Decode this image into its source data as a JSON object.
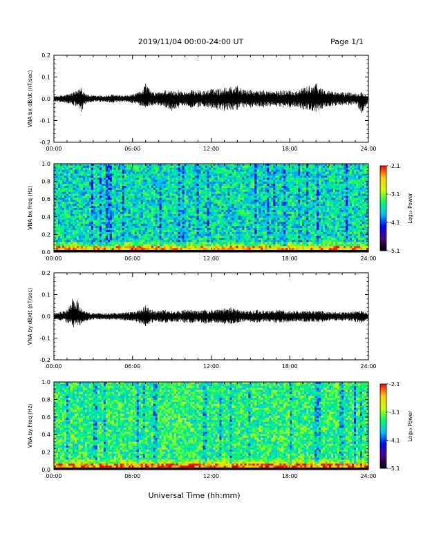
{
  "header": {
    "title": "2019/11/04  00:00-24:00 UT",
    "page_label": "Page 1/1"
  },
  "x_axis": {
    "label": "Universal Time (hh:mm)",
    "ticks": [
      "00:00",
      "06:00",
      "12:00",
      "18:00",
      "24:00"
    ]
  },
  "colorbar": {
    "label": "Log₁₀ Power",
    "tick_labels": [
      "-2.1",
      "-3.1",
      "-4.1",
      "-5.1"
    ],
    "range": [
      -5.1,
      -2.1
    ],
    "colormap": [
      "#000000",
      "#4b0082",
      "#0000ff",
      "#00bfff",
      "#00ff66",
      "#ccff00",
      "#ffcc00",
      "#ff0000"
    ]
  },
  "chart_data": [
    {
      "type": "line",
      "id": "bx",
      "ylabel": "VNA bx dB/dt (nT/sec)",
      "ylim": [
        -0.2,
        0.2
      ],
      "yticks": [
        -0.2,
        -0.1,
        0.0,
        0.1,
        0.2
      ],
      "ytick_labels": [
        "-0.2",
        "-0.1",
        "0.0",
        "0.1",
        "0.2"
      ],
      "xlim_hours": [
        0,
        24
      ],
      "series": [
        {
          "x_hours": [
            0,
            0.5,
            1,
            1.5,
            2,
            2.1,
            2.5,
            3,
            3.5,
            4,
            4.5,
            5,
            5.5,
            6,
            6.5,
            7,
            7.5,
            8,
            8.5,
            9,
            9.5,
            10,
            10.5,
            11,
            11.5,
            12,
            12.5,
            13,
            13.5,
            14,
            14.5,
            15,
            15.5,
            16,
            16.5,
            17,
            17.5,
            18,
            18.5,
            19,
            19.5,
            20,
            20.5,
            21,
            21.5,
            22,
            22.5,
            23,
            23.5,
            24
          ],
          "envelope_max": [
            0.012,
            0.015,
            0.02,
            0.03,
            0.045,
            0.05,
            0.02,
            0.015,
            0.015,
            0.015,
            0.02,
            0.015,
            0.015,
            0.02,
            0.03,
            0.07,
            0.03,
            0.03,
            0.04,
            0.035,
            0.04,
            0.03,
            0.04,
            0.04,
            0.035,
            0.045,
            0.045,
            0.05,
            0.055,
            0.06,
            0.04,
            0.04,
            0.035,
            0.04,
            0.035,
            0.035,
            0.04,
            0.04,
            0.035,
            0.05,
            0.06,
            0.07,
            0.045,
            0.035,
            0.03,
            0.03,
            0.03,
            0.025,
            0.03,
            0.02
          ],
          "envelope_min": [
            -0.012,
            -0.015,
            -0.02,
            -0.03,
            -0.045,
            -0.06,
            -0.02,
            -0.015,
            -0.015,
            -0.015,
            -0.02,
            -0.015,
            -0.015,
            -0.02,
            -0.03,
            -0.04,
            -0.03,
            -0.03,
            -0.04,
            -0.055,
            -0.04,
            -0.03,
            -0.04,
            -0.04,
            -0.035,
            -0.045,
            -0.05,
            -0.055,
            -0.05,
            -0.05,
            -0.04,
            -0.04,
            -0.035,
            -0.04,
            -0.035,
            -0.035,
            -0.04,
            -0.04,
            -0.035,
            -0.05,
            -0.05,
            -0.06,
            -0.045,
            -0.035,
            -0.03,
            -0.03,
            -0.03,
            -0.025,
            -0.065,
            -0.02
          ]
        }
      ]
    },
    {
      "type": "heatmap",
      "id": "bx_spec",
      "ylabel": "VNA bx Freq (Hz)",
      "ylim": [
        0,
        1.0
      ],
      "yticks": [
        0,
        0.2,
        0.4,
        0.6,
        0.8,
        1.0
      ],
      "ytick_labels": [
        "0.0",
        "0.2",
        "0.4",
        "0.6",
        "0.8",
        "1.0"
      ],
      "xlim_hours": [
        0,
        24
      ],
      "log10_power_range": [
        -5.1,
        -2.1
      ],
      "typical_log10_power": -3.6
    },
    {
      "type": "line",
      "id": "by",
      "ylabel": "VNA by dB/dt (nT/sec)",
      "ylim": [
        -0.2,
        0.2
      ],
      "yticks": [
        -0.2,
        -0.1,
        0.0,
        0.1,
        0.2
      ],
      "ytick_labels": [
        "-0.2",
        "-0.1",
        "0.0",
        "0.1",
        "0.2"
      ],
      "xlim_hours": [
        0,
        24
      ],
      "series": [
        {
          "x_hours": [
            0,
            0.5,
            1,
            1.4,
            1.5,
            1.8,
            2,
            2.5,
            3,
            3.5,
            4,
            4.5,
            5,
            5.5,
            6,
            6.5,
            7,
            7.5,
            8,
            8.5,
            9,
            9.5,
            10,
            10.5,
            11,
            11.5,
            12,
            12.5,
            13,
            13.5,
            14,
            14.5,
            15,
            15.5,
            16,
            16.5,
            17,
            17.5,
            18,
            18.5,
            19,
            19.5,
            20,
            20.5,
            21,
            21.5,
            22,
            22.5,
            23,
            23.5,
            24
          ],
          "envelope_max": [
            0.015,
            0.02,
            0.03,
            0.08,
            0.07,
            0.075,
            0.04,
            0.02,
            0.015,
            0.015,
            0.015,
            0.015,
            0.015,
            0.02,
            0.02,
            0.03,
            0.05,
            0.03,
            0.025,
            0.03,
            0.025,
            0.025,
            0.03,
            0.03,
            0.025,
            0.03,
            0.03,
            0.03,
            0.035,
            0.04,
            0.03,
            0.025,
            0.025,
            0.03,
            0.025,
            0.025,
            0.03,
            0.03,
            0.025,
            0.025,
            0.025,
            0.025,
            0.025,
            0.025,
            0.02,
            0.02,
            0.02,
            0.02,
            0.025,
            0.025,
            0.015
          ],
          "envelope_min": [
            -0.015,
            -0.02,
            -0.03,
            -0.04,
            -0.05,
            -0.04,
            -0.04,
            -0.02,
            -0.015,
            -0.015,
            -0.015,
            -0.015,
            -0.015,
            -0.02,
            -0.02,
            -0.03,
            -0.045,
            -0.03,
            -0.025,
            -0.03,
            -0.025,
            -0.025,
            -0.03,
            -0.03,
            -0.025,
            -0.035,
            -0.03,
            -0.03,
            -0.035,
            -0.035,
            -0.03,
            -0.025,
            -0.025,
            -0.03,
            -0.025,
            -0.025,
            -0.03,
            -0.03,
            -0.025,
            -0.025,
            -0.025,
            -0.025,
            -0.025,
            -0.025,
            -0.02,
            -0.02,
            -0.02,
            -0.02,
            -0.025,
            -0.03,
            -0.015
          ]
        }
      ]
    },
    {
      "type": "heatmap",
      "id": "by_spec",
      "ylabel": "VNA by Freq (Hz)",
      "ylim": [
        0,
        1.0
      ],
      "yticks": [
        0,
        0.2,
        0.4,
        0.6,
        0.8,
        1.0
      ],
      "ytick_labels": [
        "0.0",
        "0.2",
        "0.4",
        "0.6",
        "0.8",
        "1.0"
      ],
      "xlim_hours": [
        0,
        24
      ],
      "log10_power_range": [
        -5.1,
        -2.1
      ],
      "typical_log10_power": -3.4
    }
  ]
}
